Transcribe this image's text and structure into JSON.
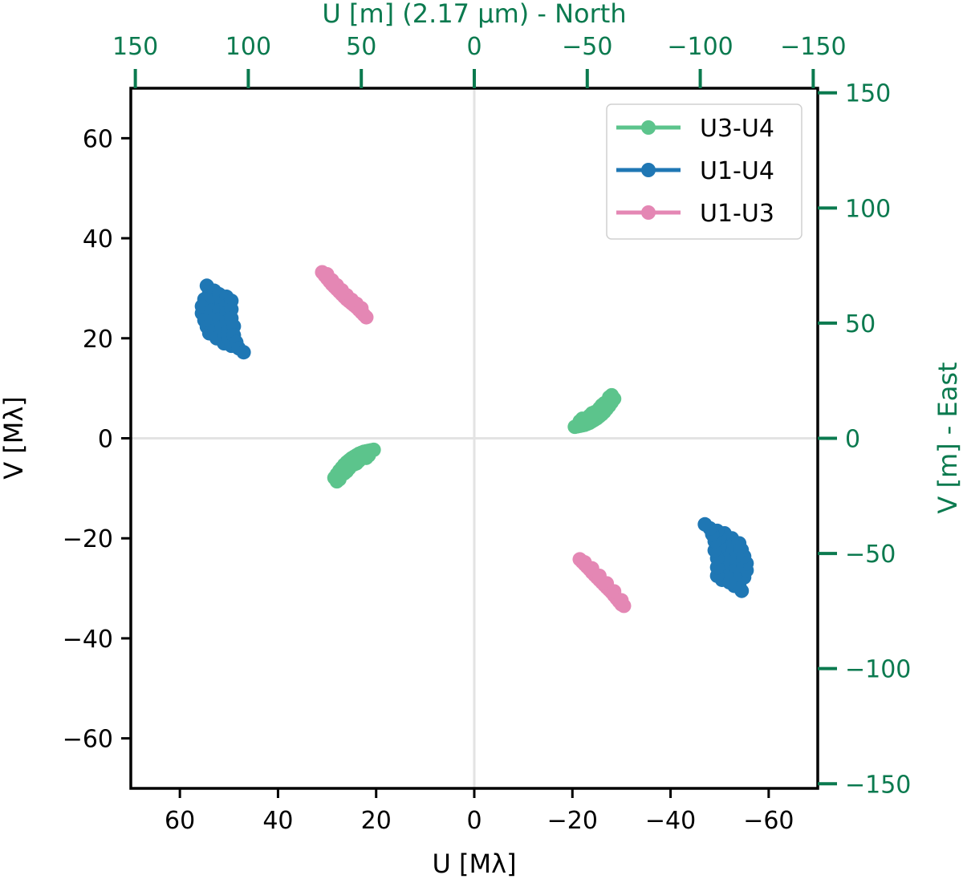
{
  "chart_data": {
    "type": "scatter",
    "xlabel": "U [Mλ]",
    "ylabel": "V [Mλ]",
    "xlim": [
      70,
      -70
    ],
    "ylim": [
      -70,
      70
    ],
    "x_ticks": [
      60,
      40,
      20,
      0,
      -20,
      -40,
      -60
    ],
    "y_ticks": [
      60,
      40,
      20,
      0,
      -20,
      -40,
      -60
    ],
    "x_tick_labels": [
      "60",
      "40",
      "20",
      "0",
      "−20",
      "−40",
      "−60"
    ],
    "y_tick_labels": [
      "60",
      "40",
      "20",
      "0",
      "−20",
      "−40",
      "−60"
    ],
    "secondary_x_axis": {
      "label": "U [m] (2.17 µm) - North",
      "lim": [
        152,
        -152
      ],
      "ticks": [
        150,
        100,
        50,
        0,
        -50,
        -100,
        -150
      ],
      "tick_labels": [
        "150",
        "100",
        "50",
        "0",
        "−50",
        "−100",
        "−150"
      ]
    },
    "secondary_y_axis": {
      "label": "V [m] - East",
      "lim": [
        -152,
        152
      ],
      "ticks": [
        150,
        100,
        50,
        0,
        -50,
        -100,
        -150
      ],
      "tick_labels": [
        "150",
        "100",
        "50",
        "0",
        "−50",
        "−100",
        "−150"
      ]
    },
    "axis_color": "#0b7a4f",
    "gridlines": "zero lines only",
    "legend_position": "top-right",
    "series": [
      {
        "name": "U3-U4",
        "color": "#5cc48c",
        "points": [
          [
            28.5,
            -7.9
          ],
          [
            28,
            -7.2
          ],
          [
            27.5,
            -6.5
          ],
          [
            27,
            -5.9
          ],
          [
            26.5,
            -5.3
          ],
          [
            26,
            -4.8
          ],
          [
            25.5,
            -4.4
          ],
          [
            25,
            -4.0
          ],
          [
            24.5,
            -3.7
          ],
          [
            24,
            -3.4
          ],
          [
            23.5,
            -3.1
          ],
          [
            23,
            -2.9
          ],
          [
            22.5,
            -2.7
          ],
          [
            22,
            -2.6
          ],
          [
            21.5,
            -2.5
          ],
          [
            21,
            -2.4
          ],
          [
            20.5,
            -2.3
          ],
          [
            27.5,
            -8.2
          ],
          [
            26.5,
            -7.0
          ],
          [
            25.5,
            -6.0
          ],
          [
            24.5,
            -5.2
          ],
          [
            23.5,
            -4.5
          ],
          [
            22.5,
            -3.8
          ],
          [
            21.5,
            -3.4
          ],
          [
            28,
            -8.6
          ],
          [
            26,
            -6.6
          ],
          [
            24,
            -5.0
          ],
          [
            22,
            -3.9
          ],
          [
            -20.5,
            2.3
          ],
          [
            -21,
            2.4
          ],
          [
            -21.5,
            2.5
          ],
          [
            -22,
            2.6
          ],
          [
            -22.5,
            2.7
          ],
          [
            -23,
            2.9
          ],
          [
            -23.5,
            3.1
          ],
          [
            -24,
            3.4
          ],
          [
            -24.5,
            3.7
          ],
          [
            -25,
            4.0
          ],
          [
            -25.5,
            4.4
          ],
          [
            -26,
            4.8
          ],
          [
            -26.5,
            5.3
          ],
          [
            -27,
            5.9
          ],
          [
            -27.5,
            6.5
          ],
          [
            -28,
            7.2
          ],
          [
            -28.5,
            7.9
          ],
          [
            -21.5,
            3.4
          ],
          [
            -22.5,
            3.8
          ],
          [
            -23.5,
            4.5
          ],
          [
            -24.5,
            5.2
          ],
          [
            -25.5,
            6.0
          ],
          [
            -26.5,
            7.0
          ],
          [
            -27.5,
            8.2
          ],
          [
            -22,
            3.9
          ],
          [
            -24,
            5.0
          ],
          [
            -26,
            6.6
          ],
          [
            -28,
            8.6
          ]
        ]
      },
      {
        "name": "U1-U4",
        "color": "#1f77b4",
        "points": [
          [
            54.5,
            30.5
          ],
          [
            54,
            29.2
          ],
          [
            55,
            27.8
          ],
          [
            55.5,
            26.4
          ],
          [
            55.5,
            25
          ],
          [
            55,
            23.6
          ],
          [
            54.5,
            22.3
          ],
          [
            54,
            21
          ],
          [
            53,
            29.5
          ],
          [
            53,
            27.5
          ],
          [
            53.5,
            25.5
          ],
          [
            53.5,
            23.5
          ],
          [
            53,
            21.5
          ],
          [
            52.5,
            20
          ],
          [
            52,
            28.8
          ],
          [
            51.5,
            27.2
          ],
          [
            52,
            25.5
          ],
          [
            52,
            23.8
          ],
          [
            51.5,
            22.2
          ],
          [
            51,
            20.5
          ],
          [
            51,
            19
          ],
          [
            50.5,
            28.3
          ],
          [
            50.5,
            26.5
          ],
          [
            50.5,
            25
          ],
          [
            50.5,
            23.3
          ],
          [
            50,
            21.6
          ],
          [
            50,
            19.8
          ],
          [
            49.5,
            18.5
          ],
          [
            49.5,
            27.5
          ],
          [
            49.5,
            25.8
          ],
          [
            49.5,
            24
          ],
          [
            49,
            22.4
          ],
          [
            49,
            20.6
          ],
          [
            48.5,
            19.2
          ],
          [
            48,
            18
          ],
          [
            47,
            17.2
          ],
          [
            -54.5,
            -30.5
          ],
          [
            -54,
            -29.2
          ],
          [
            -55,
            -27.8
          ],
          [
            -55.5,
            -26.4
          ],
          [
            -55.5,
            -25
          ],
          [
            -55,
            -23.6
          ],
          [
            -54.5,
            -22.3
          ],
          [
            -54,
            -21
          ],
          [
            -53,
            -29.5
          ],
          [
            -53,
            -27.5
          ],
          [
            -53.5,
            -25.5
          ],
          [
            -53.5,
            -23.5
          ],
          [
            -53,
            -21.5
          ],
          [
            -52.5,
            -20
          ],
          [
            -52,
            -28.8
          ],
          [
            -51.5,
            -27.2
          ],
          [
            -52,
            -25.5
          ],
          [
            -52,
            -23.8
          ],
          [
            -51.5,
            -22.2
          ],
          [
            -51,
            -20.5
          ],
          [
            -51,
            -19
          ],
          [
            -50.5,
            -28.3
          ],
          [
            -50.5,
            -26.5
          ],
          [
            -50.5,
            -25
          ],
          [
            -50.5,
            -23.3
          ],
          [
            -50,
            -21.6
          ],
          [
            -50,
            -19.8
          ],
          [
            -49.5,
            -18.5
          ],
          [
            -49.5,
            -27.5
          ],
          [
            -49.5,
            -25.8
          ],
          [
            -49.5,
            -24
          ],
          [
            -49,
            -22.4
          ],
          [
            -49,
            -20.6
          ],
          [
            -48.5,
            -19.2
          ],
          [
            -48,
            -18
          ],
          [
            -47,
            -17.2
          ]
        ]
      },
      {
        "name": "U1-U3",
        "color": "#e487b4",
        "points": [
          [
            31,
            33.2
          ],
          [
            30.5,
            32.6
          ],
          [
            30,
            32
          ],
          [
            29.5,
            31.4
          ],
          [
            29,
            30.8
          ],
          [
            28.5,
            30.3
          ],
          [
            28,
            29.8
          ],
          [
            27.5,
            29.3
          ],
          [
            27,
            28.8
          ],
          [
            26.5,
            28.3
          ],
          [
            26,
            27.8
          ],
          [
            25.5,
            27.4
          ],
          [
            25,
            27
          ],
          [
            24.5,
            26.6
          ],
          [
            24,
            26.2
          ],
          [
            23.5,
            25.7
          ],
          [
            23,
            25.2
          ],
          [
            22.5,
            24.7
          ],
          [
            22,
            24.2
          ],
          [
            30,
            32.8
          ],
          [
            29,
            31.6
          ],
          [
            28,
            30.6
          ],
          [
            27,
            29.6
          ],
          [
            26,
            28.6
          ],
          [
            25,
            27.7
          ],
          [
            24,
            26.9
          ],
          [
            23,
            26
          ],
          [
            -21.5,
            -24.2
          ],
          [
            -22,
            -24.7
          ],
          [
            -22.5,
            -25.2
          ],
          [
            -23,
            -25.7
          ],
          [
            -23.5,
            -26.2
          ],
          [
            -24,
            -26.8
          ],
          [
            -24.5,
            -27.3
          ],
          [
            -25,
            -27.8
          ],
          [
            -25.5,
            -28.3
          ],
          [
            -26,
            -28.8
          ],
          [
            -26.5,
            -29.3
          ],
          [
            -27,
            -29.8
          ],
          [
            -27.5,
            -30.3
          ],
          [
            -28,
            -30.8
          ],
          [
            -28.5,
            -31.4
          ],
          [
            -29,
            -32
          ],
          [
            -29.5,
            -32.6
          ],
          [
            -30,
            -33.2
          ],
          [
            -30.5,
            -33.5
          ],
          [
            -22.5,
            -24.8
          ],
          [
            -24,
            -26
          ],
          [
            -25.5,
            -27.5
          ],
          [
            -27,
            -29
          ],
          [
            -28.5,
            -30.6
          ],
          [
            -30,
            -32.4
          ]
        ]
      }
    ]
  }
}
